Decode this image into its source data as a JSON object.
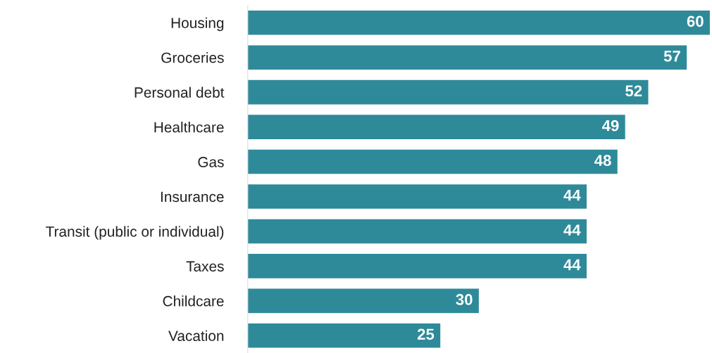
{
  "chart_data": {
    "type": "bar",
    "orientation": "horizontal",
    "categories": [
      "Housing",
      "Groceries",
      "Personal debt",
      "Healthcare",
      "Gas",
      "Insurance",
      "Transit (public or individual)",
      "Taxes",
      "Childcare",
      "Vacation"
    ],
    "values": [
      60,
      57,
      52,
      49,
      48,
      44,
      44,
      44,
      30,
      25
    ],
    "color": "#2e8a99",
    "data_labels": true,
    "grid": false,
    "legend": false
  }
}
